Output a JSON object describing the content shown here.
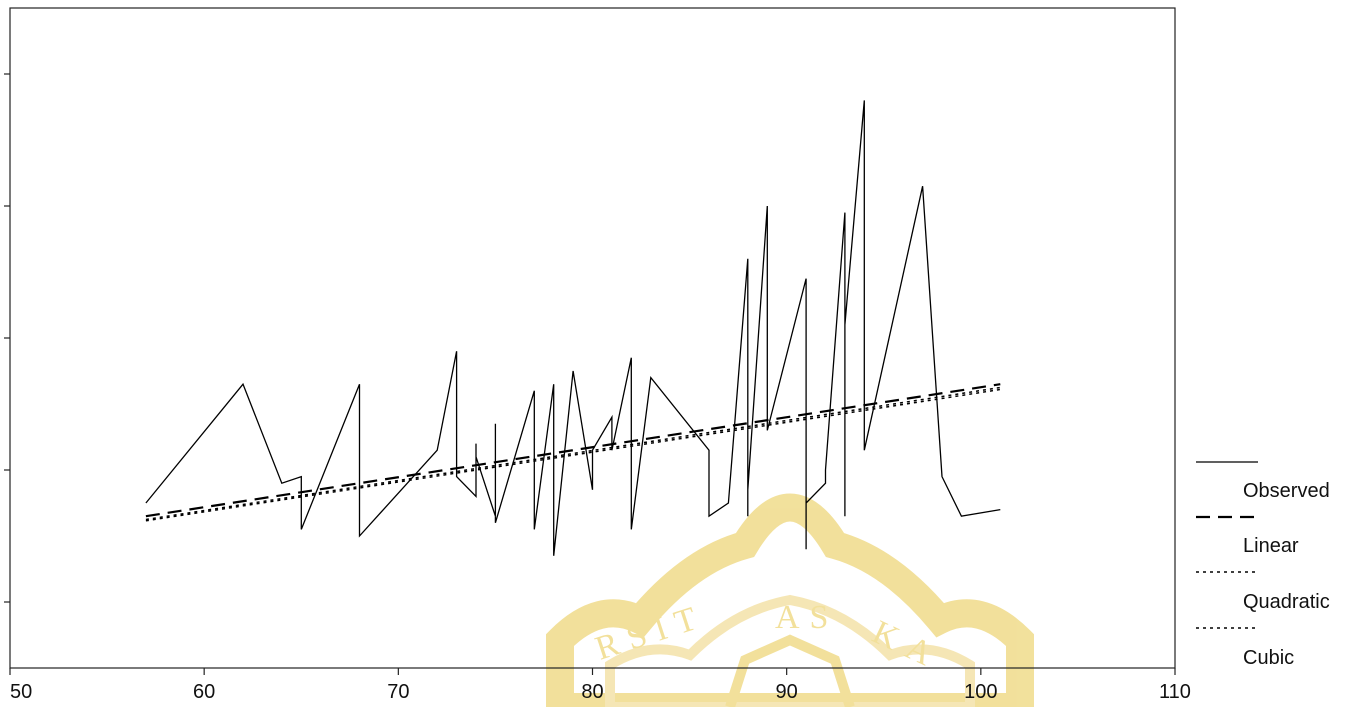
{
  "chart_data": {
    "type": "line",
    "title": "",
    "xlabel": "",
    "ylabel": "",
    "xlim": [
      50,
      110
    ],
    "ylim": [
      0,
      100
    ],
    "x_ticks": [
      50,
      60,
      70,
      80,
      90,
      100,
      110
    ],
    "x_tick_labels": [
      "50",
      "60",
      "70",
      "80",
      "90",
      "100",
      "110"
    ],
    "y_ticks": [
      10,
      30,
      50,
      70,
      90
    ],
    "grid": false,
    "legend_position": "right",
    "legend": [
      "Observed",
      "Linear",
      "Quadratic",
      "Cubic"
    ],
    "series": [
      {
        "name": "Observed",
        "style": "solid",
        "color": "#000000",
        "x": [
          57,
          62,
          64,
          65,
          65,
          68,
          68,
          72,
          73,
          73,
          74,
          74,
          74,
          75,
          75,
          75,
          77,
          77,
          78,
          78,
          79,
          80,
          80,
          81,
          81,
          82,
          82,
          83,
          86,
          86,
          87,
          88,
          88,
          88,
          89,
          89,
          91,
          91,
          91,
          92,
          92,
          93,
          93,
          93,
          94,
          94,
          97,
          98,
          99,
          101
        ],
        "y": [
          25,
          43,
          28,
          29,
          21,
          43,
          20,
          33,
          48,
          29,
          26,
          34,
          32,
          23,
          37,
          22,
          42,
          21,
          43,
          17,
          45,
          27,
          33,
          38,
          33,
          47,
          21,
          44,
          33,
          23,
          25,
          62,
          23,
          27,
          70,
          36,
          59,
          18,
          25,
          28,
          30,
          69,
          23,
          52,
          86,
          33,
          73,
          29,
          23,
          24
        ]
      },
      {
        "name": "Linear",
        "style": "dashed",
        "color": "#000000",
        "x": [
          57,
          101
        ],
        "y": [
          23,
          43
        ]
      },
      {
        "name": "Quadratic",
        "style": "dotted",
        "color": "#000000",
        "x": [
          57,
          101
        ],
        "y": [
          22.5,
          42.5
        ]
      },
      {
        "name": "Cubic",
        "style": "dotted",
        "color": "#000000",
        "x": [
          57,
          101
        ],
        "y": [
          22.3,
          42.2
        ]
      }
    ]
  },
  "watermark": {
    "text": "UNIVERSITAS KATOLIK",
    "color": "#e8c84a"
  }
}
